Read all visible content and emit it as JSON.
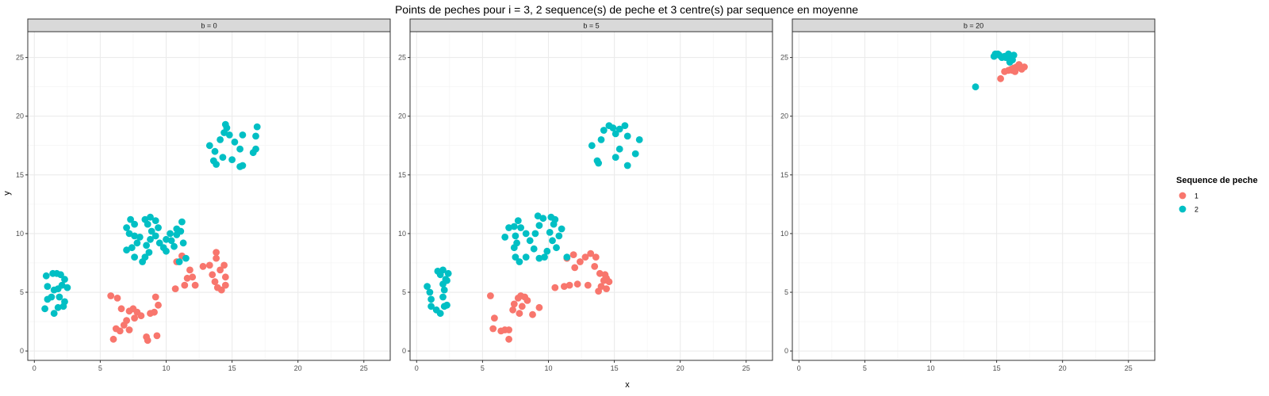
{
  "chart_data": {
    "type": "scatter",
    "title": "Points de peches pour i = 3, 2 sequence(s) de peche et 3 centre(s) par sequence en moyenne",
    "xlabel": "x",
    "ylabel": "y",
    "xlim": [
      -0.5,
      27
    ],
    "ylim": [
      -0.8,
      27.2
    ],
    "x_ticks": [
      0,
      5,
      10,
      15,
      20,
      25
    ],
    "y_ticks": [
      0,
      5,
      10,
      15,
      20,
      25
    ],
    "grid": true,
    "legend": {
      "title": "Sequence de peche",
      "position": "right",
      "entries": [
        {
          "label": "1",
          "color": "#F8766D"
        },
        {
          "label": "2",
          "color": "#00BFC4"
        }
      ]
    },
    "facets": [
      {
        "label": "b = 0",
        "series": [
          {
            "name": "1",
            "color": "#F8766D",
            "points": [
              [
                5.8,
                4.7
              ],
              [
                6.3,
                4.5
              ],
              [
                6.6,
                3.6
              ],
              [
                7.2,
                3.4
              ],
              [
                7.5,
                3.6
              ],
              [
                7.8,
                3.3
              ],
              [
                8.1,
                3.0
              ],
              [
                7.6,
                2.8
              ],
              [
                7.0,
                2.6
              ],
              [
                6.8,
                2.2
              ],
              [
                6.2,
                1.9
              ],
              [
                6.5,
                1.7
              ],
              [
                7.2,
                1.8
              ],
              [
                6.0,
                1.0
              ],
              [
                8.5,
                1.2
              ],
              [
                8.6,
                0.9
              ],
              [
                9.3,
                1.3
              ],
              [
                8.8,
                3.2
              ],
              [
                9.1,
                3.3
              ],
              [
                9.4,
                3.9
              ],
              [
                9.2,
                4.6
              ],
              [
                10.7,
                5.3
              ],
              [
                11.4,
                5.6
              ],
              [
                11.6,
                6.2
              ],
              [
                12.0,
                6.3
              ],
              [
                12.2,
                5.6
              ],
              [
                11.8,
                6.9
              ],
              [
                12.8,
                7.2
              ],
              [
                13.3,
                7.3
              ],
              [
                13.5,
                6.5
              ],
              [
                13.7,
                5.9
              ],
              [
                13.9,
                5.4
              ],
              [
                14.2,
                5.2
              ],
              [
                14.5,
                5.6
              ],
              [
                14.5,
                6.3
              ],
              [
                14.1,
                6.9
              ],
              [
                14.4,
                7.3
              ],
              [
                13.8,
                7.9
              ],
              [
                13.8,
                8.4
              ],
              [
                11.2,
                8.1
              ],
              [
                10.8,
                7.6
              ]
            ]
          },
          {
            "name": "2",
            "color": "#00BFC4",
            "points": [
              [
                0.8,
                3.6
              ],
              [
                1.0,
                4.4
              ],
              [
                1.3,
                4.6
              ],
              [
                1.5,
                5.2
              ],
              [
                1.0,
                5.5
              ],
              [
                0.9,
                6.4
              ],
              [
                1.4,
                6.6
              ],
              [
                1.7,
                6.6
              ],
              [
                2.0,
                6.5
              ],
              [
                2.3,
                6.1
              ],
              [
                2.1,
                5.6
              ],
              [
                2.5,
                5.4
              ],
              [
                1.8,
                5.3
              ],
              [
                1.9,
                4.6
              ],
              [
                2.3,
                4.2
              ],
              [
                2.2,
                3.8
              ],
              [
                1.8,
                3.7
              ],
              [
                1.5,
                3.2
              ],
              [
                7.0,
                10.5
              ],
              [
                7.3,
                11.2
              ],
              [
                7.6,
                10.8
              ],
              [
                7.2,
                10.0
              ],
              [
                7.6,
                9.8
              ],
              [
                8.0,
                9.7
              ],
              [
                7.8,
                9.2
              ],
              [
                7.4,
                8.8
              ],
              [
                7.0,
                8.6
              ],
              [
                7.6,
                8.0
              ],
              [
                8.2,
                7.6
              ],
              [
                8.4,
                8.0
              ],
              [
                8.7,
                8.4
              ],
              [
                8.5,
                9.0
              ],
              [
                8.8,
                9.5
              ],
              [
                8.9,
                10.2
              ],
              [
                8.6,
                10.8
              ],
              [
                8.4,
                11.2
              ],
              [
                8.8,
                11.4
              ],
              [
                9.2,
                11.1
              ],
              [
                9.4,
                10.5
              ],
              [
                9.2,
                9.8
              ],
              [
                9.5,
                9.2
              ],
              [
                9.8,
                8.8
              ],
              [
                10.0,
                9.5
              ],
              [
                10.3,
                10.0
              ],
              [
                10.4,
                9.4
              ],
              [
                10.0,
                8.5
              ],
              [
                10.6,
                8.9
              ],
              [
                10.8,
                9.9
              ],
              [
                11.1,
                10.2
              ],
              [
                10.8,
                10.4
              ],
              [
                11.2,
                11.0
              ],
              [
                11.3,
                9.2
              ],
              [
                11.5,
                7.9
              ],
              [
                11.0,
                7.6
              ],
              [
                13.3,
                17.5
              ],
              [
                13.7,
                17.0
              ],
              [
                13.6,
                16.2
              ],
              [
                13.8,
                15.9
              ],
              [
                14.3,
                16.5
              ],
              [
                14.1,
                18.0
              ],
              [
                14.4,
                18.6
              ],
              [
                14.6,
                19.0
              ],
              [
                14.5,
                19.3
              ],
              [
                14.8,
                18.4
              ],
              [
                15.2,
                17.8
              ],
              [
                15.0,
                16.3
              ],
              [
                15.6,
                15.7
              ],
              [
                15.8,
                15.8
              ],
              [
                15.6,
                17.2
              ],
              [
                15.8,
                18.4
              ],
              [
                16.6,
                16.9
              ],
              [
                16.8,
                17.2
              ],
              [
                16.8,
                18.3
              ],
              [
                16.9,
                19.1
              ]
            ]
          }
        ]
      },
      {
        "label": "b = 5",
        "series": [
          {
            "name": "1",
            "color": "#F8766D",
            "points": [
              [
                5.6,
                4.7
              ],
              [
                5.9,
                2.8
              ],
              [
                5.8,
                1.9
              ],
              [
                6.4,
                1.7
              ],
              [
                6.7,
                1.8
              ],
              [
                7.0,
                1.0
              ],
              [
                7.0,
                1.8
              ],
              [
                7.3,
                3.5
              ],
              [
                7.4,
                4.0
              ],
              [
                7.7,
                4.5
              ],
              [
                7.9,
                4.7
              ],
              [
                8.2,
                4.6
              ],
              [
                8.4,
                4.3
              ],
              [
                8.0,
                3.8
              ],
              [
                7.8,
                3.2
              ],
              [
                8.8,
                3.1
              ],
              [
                9.3,
                3.7
              ],
              [
                10.5,
                5.4
              ],
              [
                11.2,
                5.5
              ],
              [
                11.6,
                5.6
              ],
              [
                12.2,
                5.7
              ],
              [
                12.0,
                7.1
              ],
              [
                12.4,
                7.6
              ],
              [
                12.8,
                8.0
              ],
              [
                13.2,
                8.3
              ],
              [
                13.6,
                8.0
              ],
              [
                13.5,
                7.2
              ],
              [
                13.9,
                6.6
              ],
              [
                14.3,
                6.5
              ],
              [
                14.2,
                6.0
              ],
              [
                14.0,
                5.5
              ],
              [
                13.8,
                5.1
              ],
              [
                14.4,
                5.3
              ],
              [
                14.6,
                5.9
              ],
              [
                14.4,
                6.2
              ],
              [
                11.4,
                7.9
              ],
              [
                11.9,
                8.2
              ],
              [
                13.0,
                5.6
              ]
            ]
          },
          {
            "name": "2",
            "color": "#00BFC4",
            "points": [
              [
                0.8,
                5.5
              ],
              [
                1.0,
                5.0
              ],
              [
                1.1,
                4.4
              ],
              [
                1.1,
                3.8
              ],
              [
                1.5,
                3.5
              ],
              [
                1.8,
                3.2
              ],
              [
                2.1,
                3.8
              ],
              [
                2.3,
                3.9
              ],
              [
                2.0,
                4.6
              ],
              [
                2.1,
                5.2
              ],
              [
                2.0,
                5.7
              ],
              [
                2.2,
                6.1
              ],
              [
                1.8,
                6.5
              ],
              [
                1.6,
                6.8
              ],
              [
                2.0,
                6.9
              ],
              [
                2.4,
                6.6
              ],
              [
                2.3,
                6.0
              ],
              [
                6.7,
                9.7
              ],
              [
                7.0,
                10.5
              ],
              [
                7.4,
                10.6
              ],
              [
                7.7,
                11.1
              ],
              [
                7.9,
                10.5
              ],
              [
                8.3,
                10.0
              ],
              [
                7.5,
                9.8
              ],
              [
                7.6,
                9.2
              ],
              [
                7.4,
                8.8
              ],
              [
                7.5,
                8.0
              ],
              [
                7.8,
                7.6
              ],
              [
                8.3,
                8.0
              ],
              [
                8.9,
                8.7
              ],
              [
                8.6,
                9.4
              ],
              [
                9.0,
                10.0
              ],
              [
                9.3,
                10.7
              ],
              [
                9.6,
                11.3
              ],
              [
                10.2,
                11.4
              ],
              [
                10.4,
                10.8
              ],
              [
                10.1,
                10.1
              ],
              [
                10.3,
                9.4
              ],
              [
                10.6,
                8.8
              ],
              [
                9.9,
                8.5
              ],
              [
                9.7,
                8.0
              ],
              [
                9.3,
                7.9
              ],
              [
                10.8,
                9.8
              ],
              [
                11.0,
                10.4
              ],
              [
                10.5,
                11.2
              ],
              [
                9.2,
                11.5
              ],
              [
                11.4,
                8.0
              ],
              [
                13.3,
                17.5
              ],
              [
                13.7,
                16.2
              ],
              [
                13.8,
                16.0
              ],
              [
                14.0,
                18.0
              ],
              [
                14.2,
                18.8
              ],
              [
                14.6,
                19.2
              ],
              [
                14.9,
                19.0
              ],
              [
                15.1,
                18.5
              ],
              [
                15.4,
                18.9
              ],
              [
                15.8,
                19.2
              ],
              [
                16.0,
                18.3
              ],
              [
                15.4,
                17.2
              ],
              [
                15.1,
                16.5
              ],
              [
                16.0,
                15.8
              ],
              [
                16.6,
                16.8
              ],
              [
                16.9,
                18.0
              ]
            ]
          }
        ]
      },
      {
        "label": "b = 20",
        "series": [
          {
            "name": "1",
            "color": "#F8766D",
            "points": [
              [
                15.3,
                23.2
              ],
              [
                15.6,
                23.8
              ],
              [
                15.9,
                23.9
              ],
              [
                16.1,
                24.0
              ],
              [
                16.3,
                24.1
              ],
              [
                16.5,
                24.2
              ],
              [
                16.7,
                24.4
              ],
              [
                16.4,
                23.8
              ],
              [
                16.9,
                24.0
              ],
              [
                17.1,
                24.2
              ],
              [
                16.8,
                24.1
              ],
              [
                16.2,
                23.9
              ]
            ]
          },
          {
            "name": "2",
            "color": "#00BFC4",
            "points": [
              [
                13.4,
                22.5
              ],
              [
                14.8,
                25.1
              ],
              [
                14.9,
                25.3
              ],
              [
                15.1,
                25.3
              ],
              [
                15.2,
                25.2
              ],
              [
                15.4,
                25.0
              ],
              [
                15.6,
                25.1
              ],
              [
                15.9,
                25.3
              ],
              [
                16.1,
                25.1
              ],
              [
                16.2,
                24.8
              ],
              [
                16.3,
                25.2
              ],
              [
                16.0,
                24.6
              ],
              [
                15.7,
                25.0
              ]
            ]
          }
        ]
      }
    ]
  }
}
